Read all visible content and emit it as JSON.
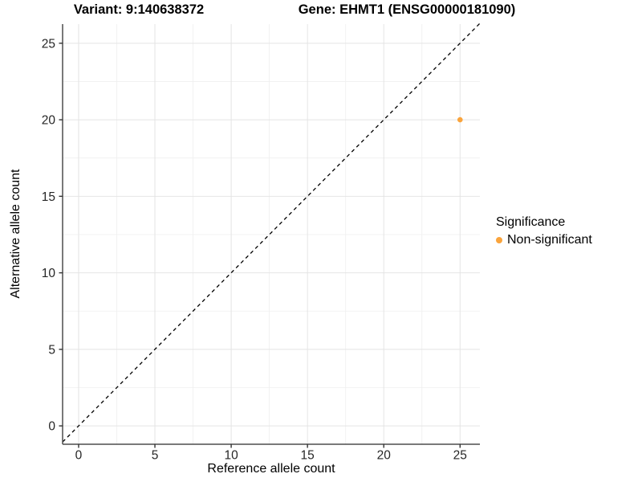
{
  "chart_data": {
    "type": "scatter",
    "titles": {
      "variant": "Variant: 9:140638372",
      "gene": "Gene: EHMT1 (ENSG00000181090)"
    },
    "xlabel": "Reference allele count",
    "ylabel": "Alternative allele count",
    "xticks": [
      0,
      5,
      10,
      15,
      20,
      25
    ],
    "yticks": [
      0,
      5,
      10,
      15,
      20,
      25
    ],
    "xlim": [
      -1.05,
      26.3
    ],
    "ylim": [
      -1.2,
      26.25
    ],
    "grid": "major+minor",
    "legend_position": "right",
    "identity_line": {
      "style": "dashed",
      "color": "#000000",
      "equation": "y = x"
    },
    "series": [
      {
        "name": "Non-significant",
        "color": "#FAA43C",
        "points": [
          {
            "x": 25,
            "y": 20
          }
        ]
      }
    ],
    "legend": {
      "title": "Significance",
      "items": [
        {
          "label": "Non-significant",
          "color": "#FAA43C"
        }
      ]
    },
    "colors": {
      "background": "#FFFFFF",
      "grid_major": "#E4E4E4",
      "grid_minor": "#EFEFEF",
      "axis_line": "#4D4D4D",
      "tick_mark": "#333333",
      "tick_label": "#262626",
      "point": "#FAA43C"
    }
  }
}
